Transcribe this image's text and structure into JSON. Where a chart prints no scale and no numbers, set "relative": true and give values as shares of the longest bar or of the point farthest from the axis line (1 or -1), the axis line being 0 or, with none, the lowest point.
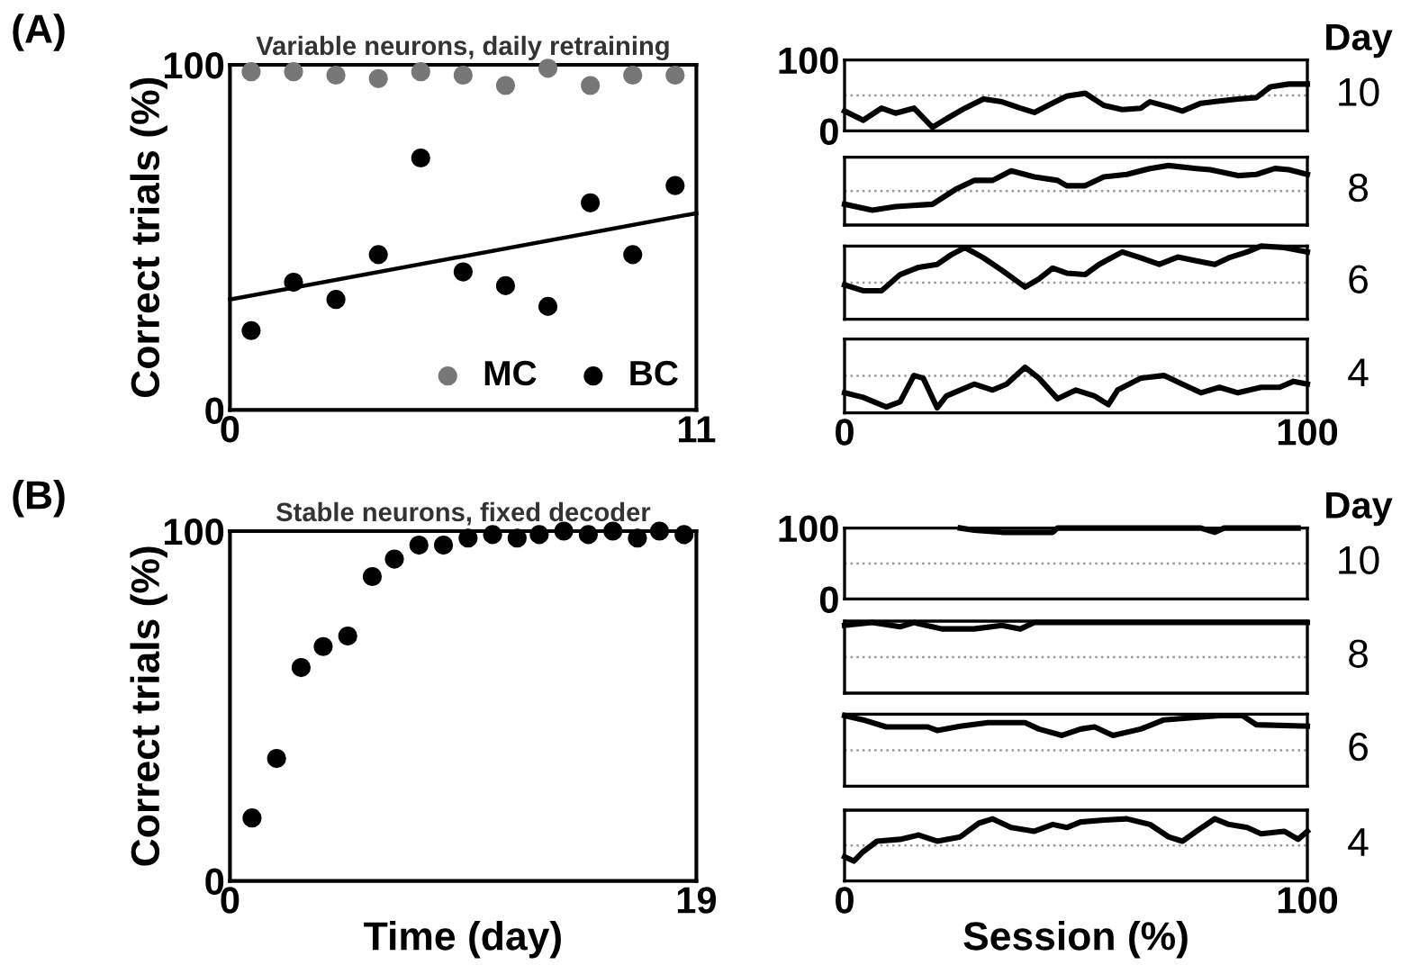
{
  "chart_data": [
    {
      "type": "scatter",
      "title": "Variable neurons, daily retraining",
      "ylabel": "Correct trials (%)",
      "annotations": [
        "(A)"
      ],
      "xlim": [
        0,
        11
      ],
      "ylim": [
        0,
        100
      ],
      "xticks": [
        0,
        11
      ],
      "yticks": [
        0,
        100
      ],
      "legend": "bottom right",
      "series": [
        {
          "name": "MC",
          "color": "#777777",
          "marker": "circle",
          "x": [
            0.5,
            1.5,
            2.5,
            3.5,
            4.5,
            5.5,
            6.5,
            7.5,
            8.5,
            9.5,
            10.5
          ],
          "values": [
            98,
            98,
            97,
            96,
            98,
            97,
            94,
            99,
            94,
            97,
            97
          ]
        },
        {
          "name": "BC",
          "color": "#000000",
          "marker": "circle",
          "x": [
            0.5,
            1.5,
            2.5,
            3.5,
            4.5,
            5.5,
            6.5,
            7.5,
            8.5,
            9.5,
            10.5
          ],
          "values": [
            23,
            37,
            32,
            45,
            73,
            40,
            36,
            30,
            60,
            45,
            65
          ]
        },
        {
          "type": "line",
          "color": "#000000",
          "x": [
            0,
            11
          ],
          "values": [
            32,
            57
          ]
        }
      ]
    },
    {
      "type": "line",
      "annotations": [
        "Day"
      ],
      "y2label": "10",
      "xlim": [
        0,
        100
      ],
      "ylim": [
        0,
        100
      ],
      "yticks": [
        0,
        100
      ],
      "tick_labels": "y",
      "ref_lines": [
        {
          "axis": "y",
          "value": 50,
          "color": "#999999",
          "line_style": "dotted"
        }
      ],
      "series": [
        {
          "color": "#000000",
          "x": [
            0,
            4,
            8,
            11,
            15,
            19,
            22,
            26,
            30,
            34,
            38,
            41,
            44,
            48,
            52,
            56,
            60,
            64,
            66,
            70,
            73,
            77,
            81,
            85,
            89,
            92,
            96,
            100
          ],
          "values": [
            28,
            15,
            32,
            25,
            32,
            5,
            17,
            32,
            45,
            41,
            32,
            26,
            36,
            49,
            53,
            36,
            30,
            32,
            41,
            34,
            28,
            39,
            42,
            45,
            47,
            62,
            66,
            66
          ]
        }
      ]
    },
    {
      "type": "line",
      "relative": true,
      "y2label": "8",
      "xlim": [
        0,
        100
      ],
      "tick_labels": false,
      "ref_lines": [
        {
          "axis": "y",
          "value": 0.57,
          "color": "#999999",
          "line_style": "dotted"
        }
      ],
      "series": [
        {
          "color": "#000000",
          "x": [
            0,
            6,
            11,
            19,
            24,
            28,
            32,
            36,
            41,
            46,
            48,
            52,
            56,
            61,
            66,
            70,
            76,
            79,
            85,
            89,
            93,
            96,
            100
          ],
          "values": [
            0.35,
            0.25,
            0.31,
            0.35,
            0.6,
            0.75,
            0.75,
            0.91,
            0.81,
            0.75,
            0.66,
            0.66,
            0.81,
            0.85,
            0.95,
            1,
            0.95,
            0.93,
            0.83,
            0.85,
            0.95,
            0.93,
            0.85
          ]
        }
      ]
    },
    {
      "type": "line",
      "relative": true,
      "y2label": "6",
      "xlim": [
        0,
        100
      ],
      "tick_labels": false,
      "ref_lines": [
        {
          "axis": "y",
          "value": 0.5,
          "color": "#999999",
          "line_style": "dotted"
        }
      ],
      "series": [
        {
          "color": "#000000",
          "x": [
            0,
            4,
            8,
            12,
            16,
            20,
            23,
            26,
            30,
            34,
            39,
            42,
            45,
            48,
            52,
            55,
            60,
            64,
            68,
            72,
            76,
            80,
            83,
            87,
            90,
            95,
            100
          ],
          "values": [
            0.47,
            0.39,
            0.39,
            0.61,
            0.71,
            0.75,
            0.88,
            0.98,
            0.84,
            0.67,
            0.44,
            0.55,
            0.7,
            0.63,
            0.61,
            0.75,
            0.92,
            0.84,
            0.75,
            0.85,
            0.8,
            0.75,
            0.84,
            0.92,
            1,
            0.98,
            0.92
          ]
        }
      ]
    },
    {
      "type": "line",
      "relative": true,
      "y2label": "4",
      "xlim": [
        0,
        100
      ],
      "xticks": [
        0,
        100
      ],
      "tick_labels": "x",
      "ref_lines": [
        {
          "axis": "y",
          "value": 0.81,
          "color": "#999999",
          "line_style": "dotted"
        }
      ],
      "series": [
        {
          "color": "#000000",
          "x": [
            0,
            4,
            9,
            12,
            15,
            17,
            20,
            22,
            28,
            32,
            35,
            39,
            42,
            46,
            50,
            54,
            57,
            59,
            64,
            69,
            73,
            77,
            81,
            85,
            90,
            94,
            97,
            100
          ],
          "values": [
            0.44,
            0.34,
            0.13,
            0.24,
            0.82,
            0.76,
            0.11,
            0.37,
            0.63,
            0.5,
            0.63,
            1,
            0.76,
            0.31,
            0.5,
            0.37,
            0.18,
            0.5,
            0.76,
            0.82,
            0.63,
            0.44,
            0.56,
            0.44,
            0.56,
            0.56,
            0.69,
            0.63
          ]
        }
      ]
    },
    {
      "type": "scatter",
      "title": "Stable neurons, fixed decoder",
      "xlabel": "Time (day)",
      "ylabel": "Correct trials (%)",
      "annotations": [
        "(B)"
      ],
      "xlim": [
        0,
        19
      ],
      "ylim": [
        0,
        100
      ],
      "xticks": [
        0,
        19
      ],
      "yticks": [
        0,
        100
      ],
      "series": [
        {
          "color": "#000000",
          "marker": "circle",
          "x": [
            0.9,
            1.9,
            2.9,
            3.8,
            4.8,
            5.8,
            6.7,
            7.7,
            8.7,
            9.7,
            10.7,
            11.7,
            12.6,
            13.6,
            14.6,
            15.6,
            16.6,
            17.5,
            18.5
          ],
          "values": [
            18,
            35,
            61,
            67,
            70,
            87,
            92,
            96,
            96,
            98,
            99,
            98,
            99,
            100,
            99,
            100,
            98,
            100,
            99
          ]
        }
      ]
    },
    {
      "type": "line",
      "annotations": [
        "Day"
      ],
      "y2label": "10",
      "xlim": [
        0,
        100
      ],
      "ylim": [
        0,
        100
      ],
      "yticks": [
        0,
        100
      ],
      "tick_labels": "y",
      "ref_lines": [
        {
          "axis": "y",
          "value": 50,
          "color": "#999999",
          "line_style": "dotted"
        }
      ],
      "series": [
        {
          "color": "#000000",
          "x": [
            25,
            28,
            34,
            45,
            46,
            54,
            63,
            77,
            80,
            82,
            98
          ],
          "values": [
            100,
            97,
            94,
            94,
            100,
            100,
            100,
            100,
            94,
            100,
            100
          ]
        }
      ]
    },
    {
      "type": "line",
      "relative": true,
      "y2label": "8",
      "xlim": [
        0,
        100
      ],
      "tick_labels": false,
      "ref_lines": [
        {
          "axis": "y",
          "value": 0.51,
          "color": "#999999",
          "line_style": "dotted"
        }
      ],
      "series": [
        {
          "color": "#000000",
          "x": [
            0,
            6,
            12,
            15,
            21,
            28,
            34,
            38,
            41,
            100
          ],
          "values": [
            0.96,
            1,
            0.94,
            1,
            0.91,
            0.91,
            0.96,
            0.91,
            1,
            1
          ]
        }
      ]
    },
    {
      "type": "line",
      "relative": true,
      "y2label": "6",
      "xlim": [
        0,
        100
      ],
      "tick_labels": false,
      "ref_lines": [
        {
          "axis": "y",
          "value": 0.51,
          "color": "#999999",
          "line_style": "dotted"
        }
      ],
      "series": [
        {
          "color": "#000000",
          "x": [
            0,
            4,
            9,
            18,
            20,
            25,
            31,
            39,
            42,
            47,
            51,
            54,
            58,
            64,
            69,
            77,
            81,
            86,
            89,
            100
          ],
          "values": [
            1,
            0.94,
            0.84,
            0.84,
            0.79,
            0.85,
            0.9,
            0.9,
            0.81,
            0.72,
            0.81,
            0.84,
            0.72,
            0.81,
            0.94,
            0.98,
            1,
            1,
            0.87,
            0.85
          ]
        }
      ]
    },
    {
      "type": "line",
      "relative": true,
      "y2label": "4",
      "xlabel": "Session (%)",
      "xlim": [
        0,
        100
      ],
      "xticks": [
        0,
        100
      ],
      "tick_labels": "x",
      "ref_lines": [
        {
          "axis": "y",
          "value": 0.57,
          "color": "#999999",
          "line_style": "dotted"
        }
      ],
      "series": [
        {
          "color": "#000000",
          "x": [
            0,
            2,
            4,
            7,
            12,
            16,
            20,
            25,
            29,
            32,
            36,
            41,
            45,
            48,
            51,
            56,
            61,
            66,
            70,
            73,
            76,
            80,
            83,
            87,
            90,
            95,
            98,
            100
          ],
          "values": [
            0.39,
            0.32,
            0.47,
            0.64,
            0.67,
            0.74,
            0.64,
            0.71,
            0.93,
            1,
            0.86,
            0.8,
            0.91,
            0.86,
            0.95,
            0.98,
            1,
            0.91,
            0.71,
            0.64,
            0.8,
            1,
            0.91,
            0.86,
            0.76,
            0.8,
            0.67,
            0.8
          ]
        }
      ]
    }
  ]
}
